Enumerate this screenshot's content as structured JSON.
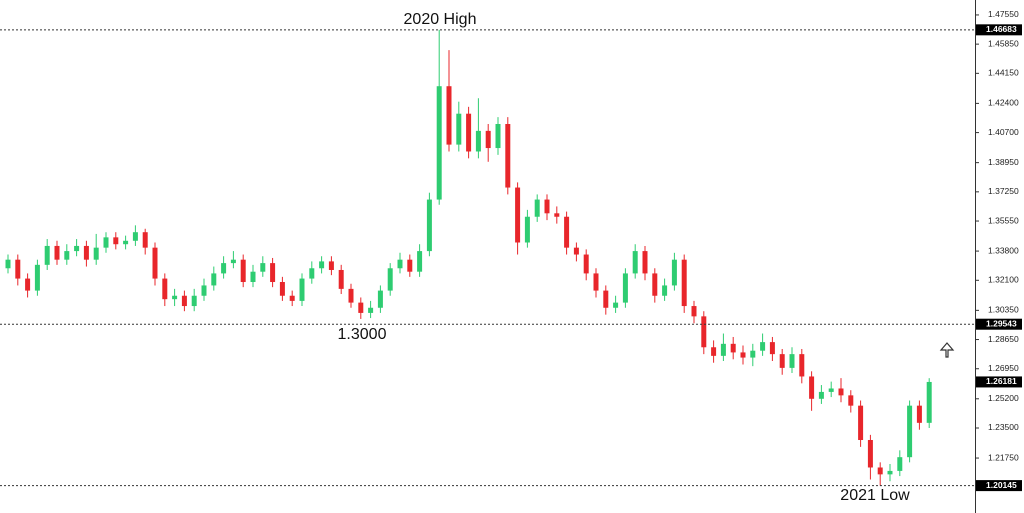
{
  "chart_data": {
    "type": "candlestick",
    "open": [
      1.328,
      1.333,
      1.322,
      1.315,
      1.33,
      1.341,
      1.333,
      1.338,
      1.341,
      1.333,
      1.34,
      1.346,
      1.342,
      1.344,
      1.349,
      1.34,
      1.322,
      1.31,
      1.312,
      1.306,
      1.312,
      1.318,
      1.325,
      1.331,
      1.333,
      1.32,
      1.326,
      1.331,
      1.32,
      1.312,
      1.309,
      1.322,
      1.328,
      1.332,
      1.327,
      1.316,
      1.308,
      1.302,
      1.305,
      1.315,
      1.328,
      1.333,
      1.326,
      1.338,
      1.368,
      1.434,
      1.4,
      1.418,
      1.396,
      1.408,
      1.398,
      1.412,
      1.375,
      1.343,
      1.358,
      1.368,
      1.36,
      1.358,
      1.34,
      1.336,
      1.325,
      1.315,
      1.305,
      1.308,
      1.325,
      1.338,
      1.325,
      1.312,
      1.318,
      1.333,
      1.306,
      1.3,
      1.282,
      1.277,
      1.284,
      1.279,
      1.276,
      1.28,
      1.285,
      1.278,
      1.27,
      1.278,
      1.265,
      1.252,
      1.256,
      1.258,
      1.254,
      1.248,
      1.228,
      1.212,
      1.208,
      1.21,
      1.218,
      1.248,
      1.238
    ],
    "high": [
      1.336,
      1.336,
      1.325,
      1.333,
      1.345,
      1.344,
      1.342,
      1.345,
      1.344,
      1.348,
      1.349,
      1.349,
      1.347,
      1.353,
      1.351,
      1.343,
      1.325,
      1.316,
      1.315,
      1.316,
      1.322,
      1.329,
      1.335,
      1.338,
      1.336,
      1.33,
      1.335,
      1.334,
      1.323,
      1.315,
      1.325,
      1.332,
      1.335,
      1.335,
      1.33,
      1.319,
      1.311,
      1.309,
      1.318,
      1.331,
      1.337,
      1.336,
      1.342,
      1.372,
      1.46683,
      1.455,
      1.425,
      1.422,
      1.427,
      1.412,
      1.416,
      1.416,
      1.378,
      1.362,
      1.371,
      1.371,
      1.364,
      1.361,
      1.343,
      1.339,
      1.328,
      1.318,
      1.312,
      1.328,
      1.342,
      1.341,
      1.328,
      1.322,
      1.337,
      1.336,
      1.309,
      1.303,
      1.286,
      1.29,
      1.288,
      1.283,
      1.284,
      1.29,
      1.288,
      1.281,
      1.282,
      1.281,
      1.268,
      1.26,
      1.262,
      1.264,
      1.257,
      1.251,
      1.231,
      1.215,
      1.214,
      1.222,
      1.251,
      1.251,
      1.264
    ],
    "low": [
      1.325,
      1.318,
      1.311,
      1.312,
      1.327,
      1.33,
      1.33,
      1.335,
      1.329,
      1.33,
      1.337,
      1.339,
      1.339,
      1.341,
      1.336,
      1.318,
      1.306,
      1.306,
      1.303,
      1.303,
      1.309,
      1.315,
      1.322,
      1.328,
      1.317,
      1.317,
      1.323,
      1.317,
      1.309,
      1.306,
      1.306,
      1.319,
      1.325,
      1.324,
      1.313,
      1.305,
      1.2985,
      1.299,
      1.302,
      1.312,
      1.325,
      1.323,
      1.323,
      1.335,
      1.365,
      1.396,
      1.396,
      1.392,
      1.392,
      1.39,
      1.394,
      1.371,
      1.336,
      1.34,
      1.355,
      1.356,
      1.354,
      1.336,
      1.332,
      1.321,
      1.311,
      1.301,
      1.302,
      1.305,
      1.322,
      1.321,
      1.308,
      1.309,
      1.315,
      1.302,
      1.296,
      1.278,
      1.273,
      1.274,
      1.275,
      1.272,
      1.271,
      1.277,
      1.274,
      1.266,
      1.267,
      1.261,
      1.245,
      1.249,
      1.253,
      1.25,
      1.244,
      1.224,
      1.205,
      1.20145,
      1.204,
      1.207,
      1.215,
      1.234,
      1.235
    ],
    "close": [
      1.333,
      1.322,
      1.315,
      1.33,
      1.341,
      1.333,
      1.338,
      1.341,
      1.333,
      1.34,
      1.346,
      1.342,
      1.344,
      1.349,
      1.34,
      1.322,
      1.31,
      1.312,
      1.306,
      1.312,
      1.318,
      1.325,
      1.331,
      1.333,
      1.32,
      1.326,
      1.331,
      1.32,
      1.312,
      1.309,
      1.322,
      1.328,
      1.332,
      1.327,
      1.316,
      1.308,
      1.302,
      1.305,
      1.315,
      1.328,
      1.333,
      1.326,
      1.338,
      1.368,
      1.434,
      1.4,
      1.418,
      1.396,
      1.408,
      1.398,
      1.412,
      1.375,
      1.343,
      1.358,
      1.368,
      1.36,
      1.358,
      1.34,
      1.336,
      1.325,
      1.315,
      1.305,
      1.308,
      1.325,
      1.338,
      1.325,
      1.312,
      1.318,
      1.333,
      1.306,
      1.3,
      1.282,
      1.277,
      1.284,
      1.279,
      1.276,
      1.28,
      1.285,
      1.278,
      1.27,
      1.278,
      1.265,
      1.252,
      1.256,
      1.258,
      1.254,
      1.248,
      1.228,
      1.212,
      1.208,
      1.21,
      1.218,
      1.248,
      1.238,
      1.2618
    ],
    "up_color": "#2ecc71",
    "down_color": "#e8262b",
    "ylim": [
      1.1855,
      1.4842
    ],
    "yticks": [
      {
        "value": 1.4755,
        "label": "1.47550"
      },
      {
        "value": 1.4585,
        "label": "1.45850"
      },
      {
        "value": 1.4415,
        "label": "1.44150"
      },
      {
        "value": 1.424,
        "label": "1.42400"
      },
      {
        "value": 1.407,
        "label": "1.40700"
      },
      {
        "value": 1.3895,
        "label": "1.38950"
      },
      {
        "value": 1.3725,
        "label": "1.37250"
      },
      {
        "value": 1.3555,
        "label": "1.35550"
      },
      {
        "value": 1.338,
        "label": "1.33800"
      },
      {
        "value": 1.321,
        "label": "1.32100"
      },
      {
        "value": 1.3035,
        "label": "1.30350"
      },
      {
        "value": 1.2865,
        "label": "1.28650"
      },
      {
        "value": 1.2695,
        "label": "1.26950"
      },
      {
        "value": 1.252,
        "label": "1.25200"
      },
      {
        "value": 1.235,
        "label": "1.23500"
      },
      {
        "value": 1.2175,
        "label": "1.21750"
      }
    ],
    "price_labels": [
      {
        "value": 1.46683,
        "label": "1.46683",
        "line": true
      },
      {
        "value": 1.29543,
        "label": "1.29543",
        "line": true
      },
      {
        "value": 1.26181,
        "label": "1.26181",
        "line": false
      },
      {
        "value": 1.20145,
        "label": "1.20145",
        "line": true
      }
    ],
    "annotations": [
      "2020 High",
      "1.3000",
      "2021 Low"
    ]
  }
}
